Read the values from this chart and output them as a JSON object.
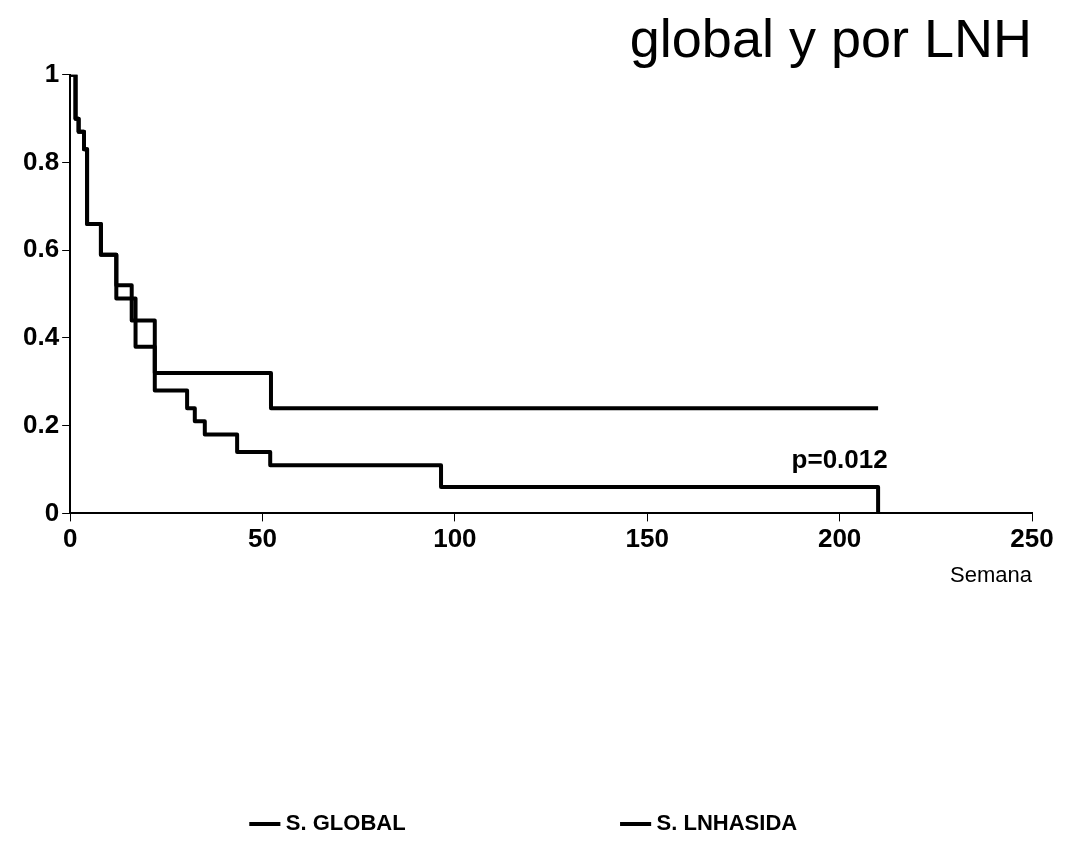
{
  "chart_data": {
    "type": "step",
    "title": "global y por LNH",
    "xlabel": "Semana",
    "xlim": [
      0,
      250
    ],
    "xticks": [
      0,
      50,
      100,
      150,
      200,
      250
    ],
    "ylim": [
      0,
      1
    ],
    "yticks": [
      0,
      0.2,
      0.4,
      0.6,
      0.8,
      1
    ],
    "grid": false,
    "legend": "bottom",
    "annotations": [
      "p=0.012"
    ],
    "series": [
      {
        "name": "S. GLOBAL",
        "color": "#000000",
        "x": [
          0,
          1.4,
          2.2,
          3.6,
          4.4,
          8,
          12,
          17,
          22,
          30.4,
          32.4,
          35,
          43.4,
          52,
          96.4,
          210,
          210
        ],
        "values": [
          1,
          0.9,
          0.87,
          0.83,
          0.66,
          0.59,
          0.49,
          0.38,
          0.28,
          0.24,
          0.21,
          0.18,
          0.14,
          0.11,
          0.06,
          0.06,
          0
        ]
      },
      {
        "name": "S. LNHASIDA",
        "color": "#000000",
        "x": [
          0,
          1.4,
          2.2,
          3.6,
          4.4,
          8,
          12,
          16,
          22,
          52.2,
          210
        ],
        "values": [
          1,
          0.9,
          0.87,
          0.83,
          0.66,
          0.59,
          0.52,
          0.44,
          0.32,
          0.24,
          0.24
        ]
      }
    ]
  }
}
